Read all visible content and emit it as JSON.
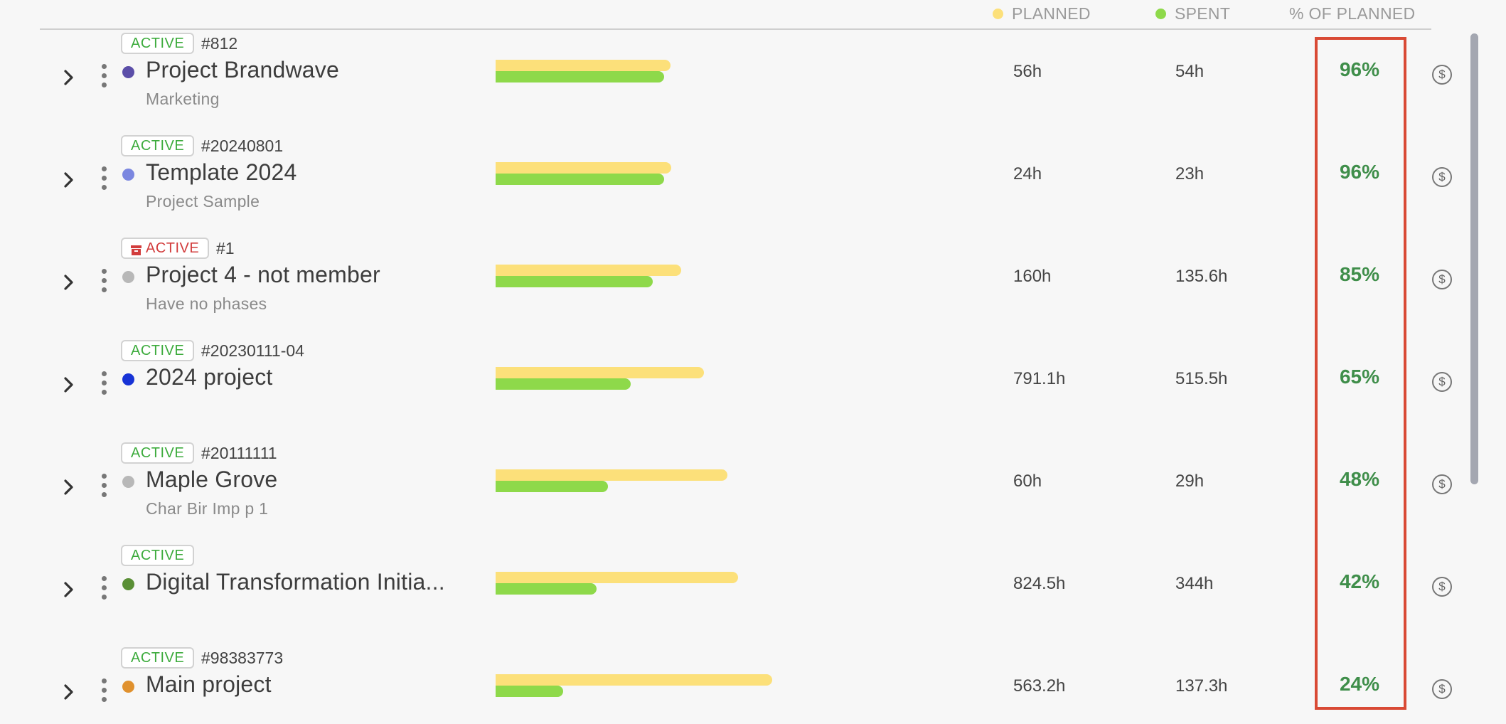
{
  "header": {
    "planned": "PLANNED",
    "spent": "SPENT",
    "pct_of_planned": "% OF PLANNED",
    "planned_color": "#fce07a",
    "spent_color": "#8ed94a"
  },
  "rows": [
    {
      "status": "ACTIVE",
      "archived": false,
      "id": "#812",
      "name": "Project Brandwave",
      "subtitle": "Marketing",
      "color": "#5b4ea8",
      "planned": "56h",
      "spent": "54h",
      "pct": "96%",
      "planned_fraction": 0.41,
      "spent_fraction": 0.395
    },
    {
      "status": "ACTIVE",
      "archived": false,
      "id": "#20240801",
      "name": "Template 2024",
      "subtitle": "Project Sample",
      "color": "#7b87e0",
      "planned": "24h",
      "spent": "23h",
      "pct": "96%",
      "planned_fraction": 0.411,
      "spent_fraction": 0.395
    },
    {
      "status": "ACTIVE",
      "archived": true,
      "id": "#1",
      "name": "Project 4 - not member",
      "subtitle": "Have no phases",
      "color": "#b8b8b8",
      "planned": "160h",
      "spent": "135.6h",
      "pct": "85%",
      "planned_fraction": 0.435,
      "spent_fraction": 0.368
    },
    {
      "status": "ACTIVE",
      "archived": false,
      "id": "#20230111-04",
      "name": "2024 project",
      "subtitle": "",
      "color": "#1733d6",
      "planned": "791.1h",
      "spent": "515.5h",
      "pct": "65%",
      "planned_fraction": 0.488,
      "spent_fraction": 0.316
    },
    {
      "status": "ACTIVE",
      "archived": false,
      "id": "#20111111",
      "name": "Maple Grove",
      "subtitle": "Char Bir Imp p 1",
      "color": "#b8b8b8",
      "planned": "60h",
      "spent": "29h",
      "pct": "48%",
      "planned_fraction": 0.543,
      "spent_fraction": 0.263
    },
    {
      "status": "ACTIVE",
      "archived": false,
      "id": "",
      "name": "Digital Transformation Initia...",
      "subtitle": "",
      "color": "#5a8f36",
      "planned": "824.5h",
      "spent": "344h",
      "pct": "42%",
      "planned_fraction": 0.568,
      "spent_fraction": 0.236
    },
    {
      "status": "ACTIVE",
      "archived": false,
      "id": "#98383773",
      "name": "Main project",
      "subtitle": "",
      "color": "#e0912e",
      "planned": "563.2h",
      "spent": "137.3h",
      "pct": "24%",
      "planned_fraction": 0.648,
      "spent_fraction": 0.158
    }
  ],
  "icons": {
    "expand": "chevron-right-icon",
    "menu": "kebab-menu-icon",
    "billing": "dollar-icon",
    "archived": "archive-box-icon"
  }
}
